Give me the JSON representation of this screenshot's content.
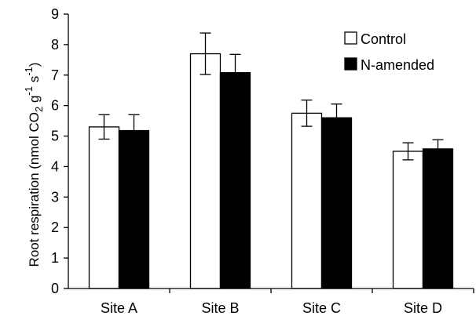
{
  "chart_data": {
    "type": "bar",
    "categories": [
      "Site A",
      "Site B",
      "Site C",
      "Site D"
    ],
    "series": [
      {
        "name": "Control",
        "color": "#ffffff",
        "values": [
          5.3,
          7.7,
          5.75,
          4.5
        ],
        "errors": [
          0.4,
          0.68,
          0.43,
          0.28
        ]
      },
      {
        "name": "N-amended",
        "color": "#000000",
        "values": [
          5.18,
          7.08,
          5.6,
          4.58
        ],
        "errors": [
          0.52,
          0.6,
          0.45,
          0.3
        ]
      }
    ],
    "title": "",
    "xlabel": "",
    "ylabel": {
      "main": "Root respiration (nmol CO",
      "sub": "2",
      "mid": " g",
      "sup1": "-1",
      "mid2": " s",
      "sup2": "-1",
      "end": ")"
    },
    "ylim": [
      0,
      9
    ],
    "yticks": [
      "0",
      "1",
      "2",
      "3",
      "4",
      "5",
      "6",
      "7",
      "8",
      "9"
    ],
    "legend_position": "top-right",
    "grid": false
  }
}
